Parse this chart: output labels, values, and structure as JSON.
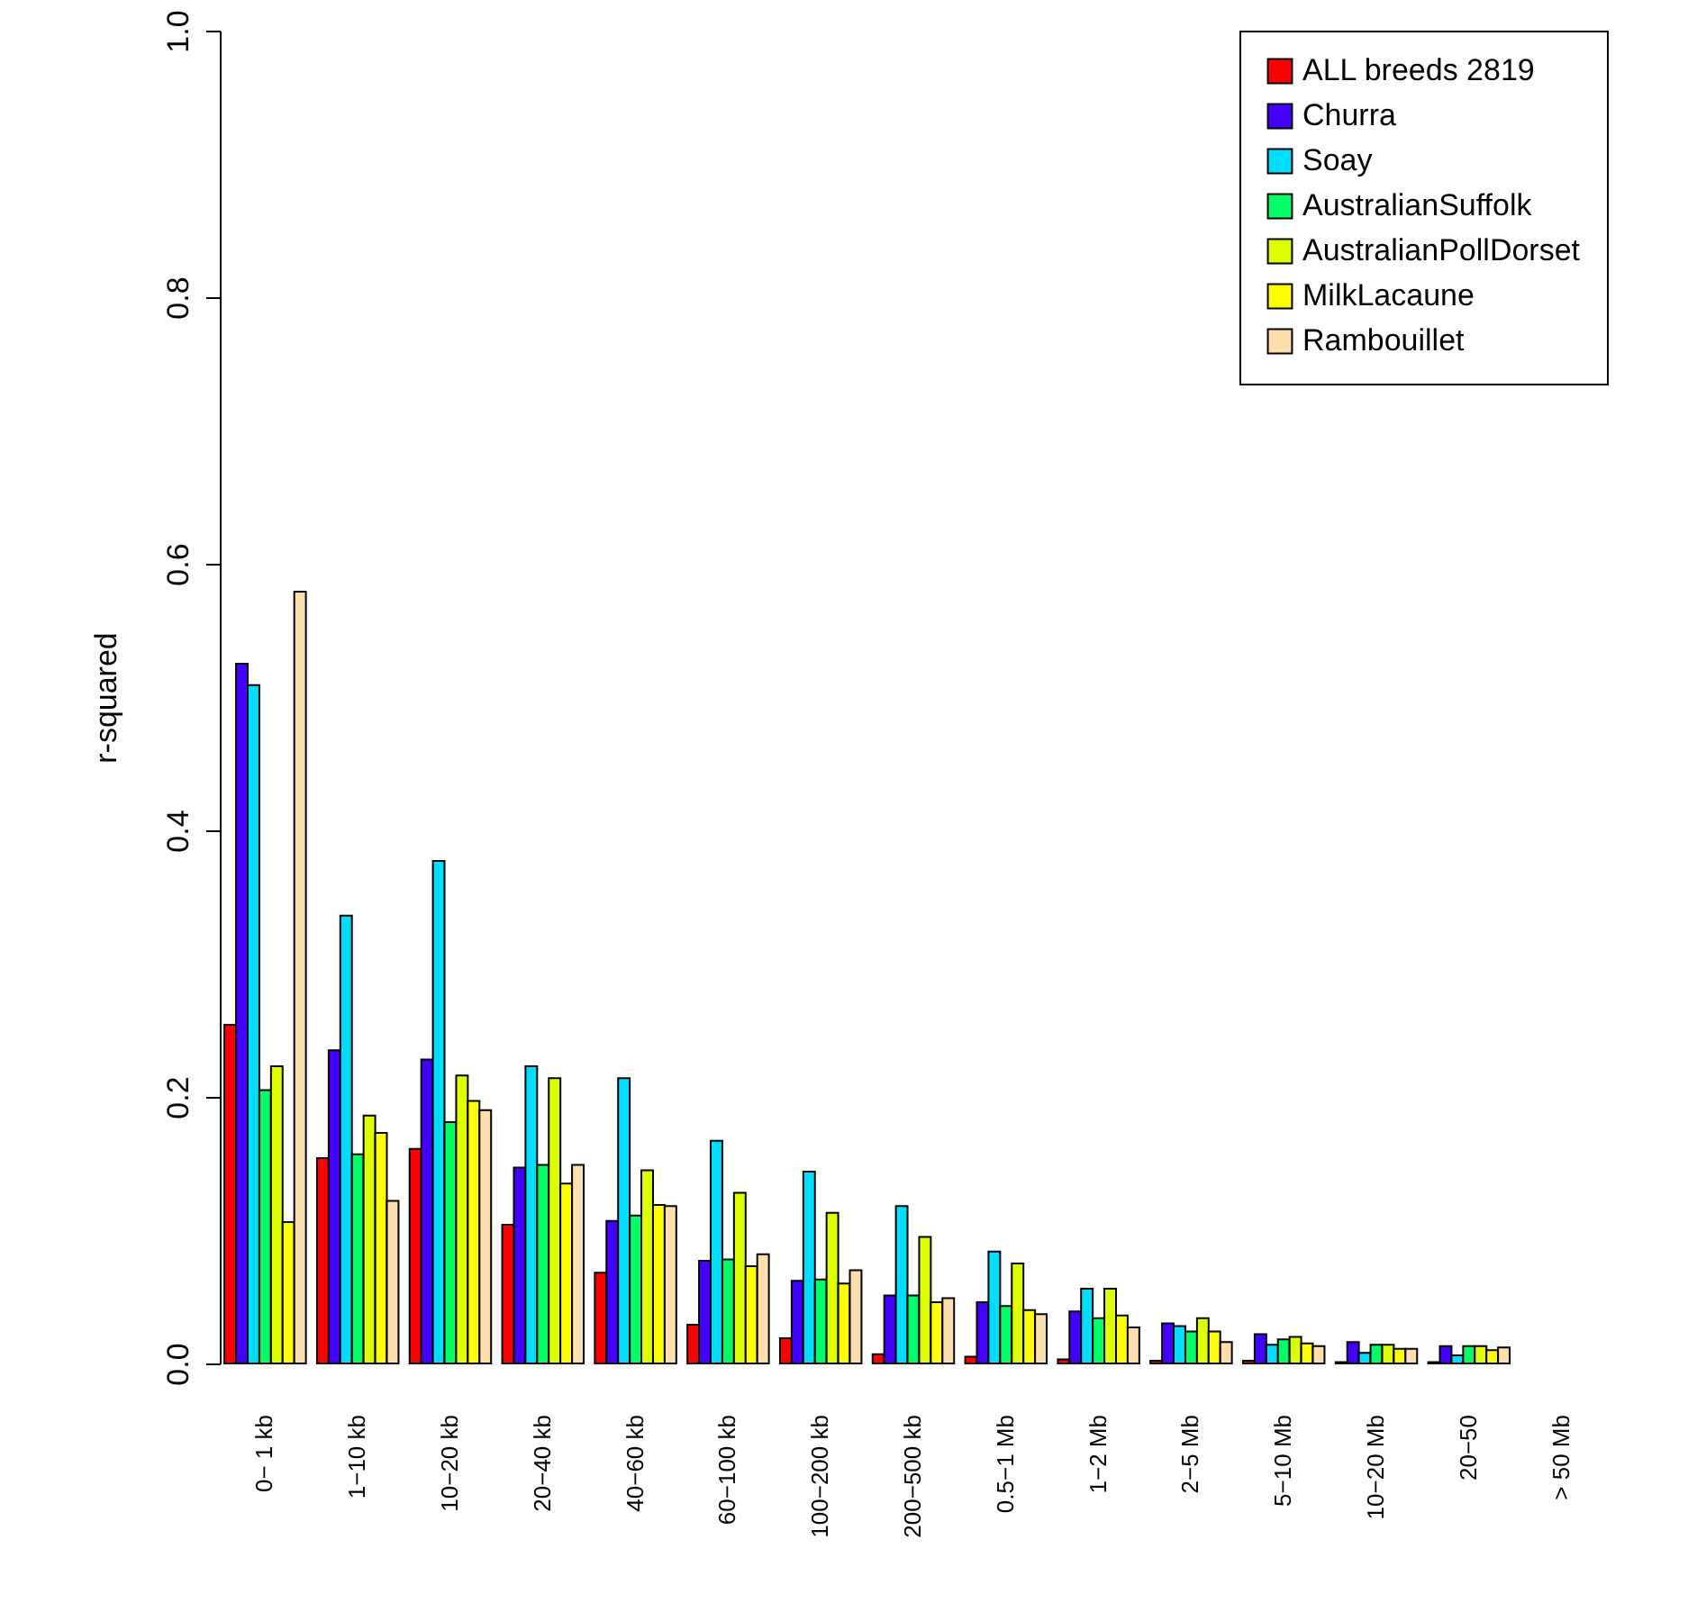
{
  "chart_data": {
    "type": "bar",
    "ylabel": "r-squared",
    "categories": [
      "0− 1 kb",
      "1−10 kb",
      "10−20 kb",
      "20−40 kb",
      "40−60 kb",
      "60−100 kb",
      "100−200 kb",
      "200−500 kb",
      "0.5−1 Mb",
      "1−2 Mb",
      "2−5 Mb",
      "5−10 Mb",
      "10−20 Mb",
      "20−50",
      "> 50 Mb"
    ],
    "series": [
      {
        "name": "ALL breeds 2819",
        "color": "#ff0000",
        "values": [
          0.254,
          0.154,
          0.161,
          0.104,
          0.068,
          0.029,
          0.019,
          0.007,
          0.005,
          0.003,
          0.002,
          0.002,
          0.001,
          0.001,
          null
        ]
      },
      {
        "name": "Churra",
        "color": "#4400ff",
        "values": [
          0.525,
          0.235,
          0.228,
          0.147,
          0.107,
          0.077,
          0.062,
          0.051,
          0.046,
          0.039,
          0.03,
          0.022,
          0.016,
          0.013,
          null
        ]
      },
      {
        "name": "Soay",
        "color": "#00ddff",
        "values": [
          0.509,
          0.336,
          0.377,
          0.223,
          0.214,
          0.167,
          0.144,
          0.118,
          0.084,
          0.056,
          0.028,
          0.014,
          0.008,
          0.006,
          null
        ]
      },
      {
        "name": "AustralianSuffolk",
        "color": "#00ff66",
        "values": [
          0.205,
          0.157,
          0.181,
          0.149,
          0.111,
          0.078,
          0.063,
          0.051,
          0.043,
          0.034,
          0.024,
          0.018,
          0.014,
          0.013,
          null
        ]
      },
      {
        "name": "AustralianPollDorset",
        "color": "#ddff00",
        "values": [
          0.223,
          0.186,
          0.216,
          0.214,
          0.145,
          0.128,
          0.113,
          0.095,
          0.075,
          0.056,
          0.034,
          0.02,
          0.014,
          0.013,
          null
        ]
      },
      {
        "name": "MilkLacaune",
        "color": "#ffff00",
        "values": [
          0.106,
          0.173,
          0.197,
          0.135,
          0.119,
          0.073,
          0.06,
          0.046,
          0.04,
          0.036,
          0.024,
          0.015,
          0.011,
          0.01,
          null
        ]
      },
      {
        "name": "Rambouillet",
        "color": "#ffdead",
        "values": [
          0.579,
          0.122,
          0.19,
          0.149,
          0.118,
          0.082,
          0.07,
          0.049,
          0.037,
          0.027,
          0.016,
          0.013,
          0.011,
          0.012,
          null
        ]
      }
    ],
    "ylim": [
      0,
      1
    ],
    "yticks": [
      {
        "value": 0,
        "label": "0.0"
      },
      0.2,
      0.4,
      0.6,
      0.8,
      {
        "value": 1,
        "label": "1.0"
      }
    ],
    "grid": false,
    "legend": "top right"
  }
}
